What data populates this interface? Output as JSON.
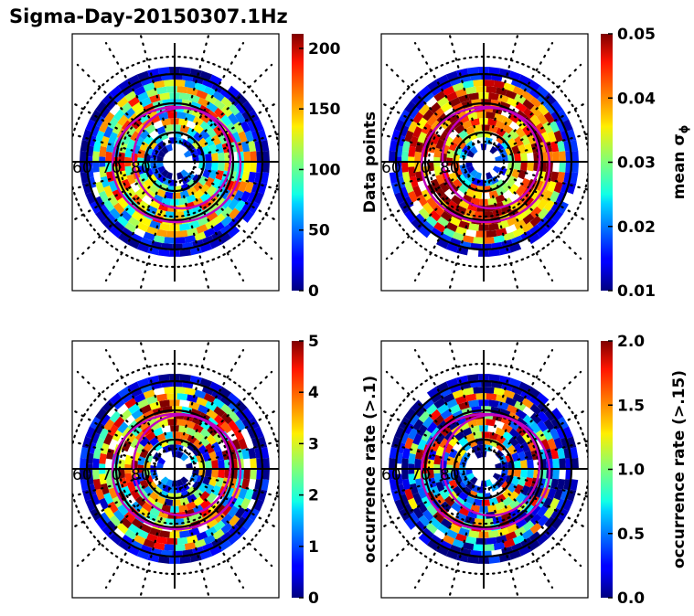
{
  "chart_data": {
    "type": "heatmap",
    "title": "Sigma-Day-20150307.1Hz",
    "projection": "polar (magnetic latitude / MLT dial)",
    "latitude_ring_labels": [
      "60",
      "70",
      "80"
    ],
    "latitude_rings": [
      60,
      70,
      80
    ],
    "dotted_grid": true,
    "overlay": {
      "description": "auroral oval boundaries",
      "color": "#c000c0",
      "count": 2
    },
    "colormap": "jet",
    "panels": [
      {
        "id": "data-points",
        "colorbar_label": "Data points",
        "colorbar_range": [
          0,
          212
        ],
        "colorbar_ticks": [
          "0",
          "50",
          "100",
          "150",
          "200"
        ],
        "colorbar_tick_values": [
          0,
          50,
          100,
          150,
          200
        ],
        "field_level": 0.45,
        "field_scatter": 0.35
      },
      {
        "id": "mean-sigma-phi",
        "colorbar_label": "mean σ",
        "colorbar_label_subscript": "ϕ",
        "colorbar_range": [
          0.01,
          0.05
        ],
        "colorbar_ticks": [
          "0.01",
          "0.02",
          "0.03",
          "0.04",
          "0.05"
        ],
        "colorbar_tick_values": [
          0.01,
          0.02,
          0.03,
          0.04,
          0.05
        ],
        "field_level": 0.7,
        "field_scatter": 0.3
      },
      {
        "id": "occurrence-rate-0.1",
        "colorbar_label": "occurrence rate (>.1)",
        "colorbar_range": [
          0,
          5
        ],
        "colorbar_ticks": [
          "0",
          "1",
          "2",
          "3",
          "4",
          "5"
        ],
        "colorbar_tick_values": [
          0,
          1,
          2,
          3,
          4,
          5
        ],
        "field_level": 0.5,
        "field_scatter": 0.5
      },
      {
        "id": "occurrence-rate-0.15",
        "colorbar_label": "occurrence rate (>.15)",
        "colorbar_range": [
          0,
          2
        ],
        "colorbar_ticks": [
          "0.0",
          "0.5",
          "1.0",
          "1.5",
          "2.0"
        ],
        "colorbar_tick_values": [
          0,
          0.5,
          1.0,
          1.5,
          2.0
        ],
        "field_level": 0.35,
        "field_scatter": 0.6
      }
    ]
  }
}
